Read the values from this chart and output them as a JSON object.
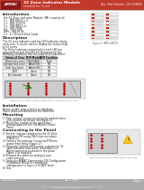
{
  "title": "32 Zone Indicator Module",
  "subtitle": "Installation Guide",
  "doc_number": "Doc. Part Number: LIS-374854",
  "header_bg": "#c0392b",
  "header_left_bg": "#8b1a1a",
  "page_bg": "#ffffff",
  "footer_bg": "#aaaaaa",
  "footer_dark_bg": "#888888",
  "body_text_color": "#222222",
  "gray_text": "#555555",
  "intro_title": "Introduction",
  "intro_body": "The 32-Zone Indicator Module (IM) consists of:",
  "intro_items": [
    "1 x   MIM-IND32 x 4",
    "2 x   MIM 32IM-TS",
    "3 x   DIM-IND32-xx",
    "4 x   DIM-ZONE",
    "MIM:  LINK-8X-IN",
    "5 x   4 x Printed Zone Cards"
  ],
  "desc_title": "Description",
  "desc_para1": "The 32 zone indicator card has LED indicators along each zone. It can be used to display the status of up to 32 zones.",
  "desc_para2": "The Relay Indicators associated to each LED are programmed and the LED will illuminate for the following conditions (for the respective indicators):",
  "table_headers": [
    "Status of Zone",
    "MIM Module",
    "MIM Condition"
  ],
  "table_rows": [
    [
      "Alarm (any zone)",
      "Red/FLASH",
      "Flash"
    ],
    [
      "Isolated (any zone)",
      "Amber/ON",
      "ON"
    ],
    [
      "Fault (any zone)",
      "Amber/ON",
      "ON"
    ],
    [
      "TEST",
      "Green",
      "ON"
    ],
    [
      "AC Indicator",
      "Green",
      "ON"
    ]
  ],
  "install_title": "Installation",
  "install_body": "Before install, stop systems or shutdown.\nPower down and disconnect the batteries.",
  "mount_title": "Mounting",
  "mount_items": [
    "1)  First, remove screws securing the module into a slide position as shown (see figure 2).",
    "2)  Mount the module to the panel door position/panel at the Fire Alarm Control Panel."
  ],
  "connect_title": "Connecting to the Panel",
  "connect_items": [
    "1)  Set the indicator address for the 32 Zone Indicator (IM) using SW-8 dips see photo (Figure 2).",
    "2)  Connect the indicator Connector/PCB into power from Relay (Figure 2).",
    "3)  Using the Indicator PCB create connect the 32 zone indicator card to the removable Fire Alarm connector as shown in the panel Figure 2 or supplied.",
    "4)  Program the panel according to your requirements.",
    "5)  Using the AMPAC Commander 100 Configuration (Distributor Menu) to completion configuration to Figure 2-in FACP book.",
    "6)  Test."
  ],
  "fig1_caption": "Figure 1: MIM 32IM-TS",
  "fig2_caption": "Figure 2: An Ampac Indicator Model 4000A, 8000 INCP-8 (Fig 2-fig)",
  "fig3_caption": "Figure 3: Rear View of Ampac Basic Alarm Panel",
  "footer_left": "LIS-374854",
  "footer_right": "Page 1",
  "footer_center": "AMPAC IS A BRAND OF PERTRONIC INDUSTRIES AND ALARMS SYSTEMS"
}
